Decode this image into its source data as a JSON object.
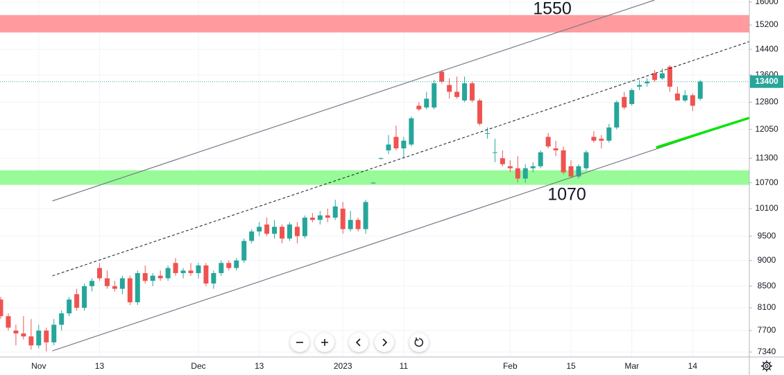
{
  "chart_data": {
    "type": "candlestick",
    "log_scale": true,
    "grid": true,
    "up_color": "#26a69a",
    "down_color": "#ef5350",
    "ylim": [
      7260,
      16070
    ],
    "yticks": [
      16000,
      15200,
      14400,
      13600,
      12800,
      12050,
      11300,
      10700,
      10100,
      9500,
      9000,
      8500,
      8100,
      7700,
      7340
    ],
    "categories": [
      null,
      null,
      null,
      null,
      null,
      "Nov",
      null,
      null,
      null,
      null,
      null,
      null,
      null,
      "13",
      null,
      null,
      null,
      null,
      null,
      null,
      null,
      null,
      null,
      null,
      null,
      null,
      "Dec",
      null,
      null,
      null,
      null,
      null,
      null,
      null,
      "13",
      null,
      null,
      null,
      null,
      null,
      null,
      null,
      null,
      null,
      null,
      "2023",
      null,
      null,
      null,
      null,
      null,
      null,
      null,
      "11",
      null,
      null,
      null,
      null,
      null,
      null,
      null,
      null,
      null,
      null,
      null,
      null,
      null,
      "Feb",
      null,
      null,
      null,
      null,
      null,
      null,
      null,
      "15",
      null,
      null,
      null,
      null,
      null,
      null,
      null,
      "Mar",
      null,
      null,
      null,
      null,
      null,
      null,
      null,
      "14",
      null
    ],
    "open": [
      8250,
      7950,
      7700,
      7650,
      7600,
      7450,
      7700,
      7500,
      7800,
      8000,
      8350,
      8100,
      8500,
      8850,
      8650,
      8500,
      8450,
      8650,
      8200,
      8750,
      8600,
      8700,
      8650,
      8950,
      8750,
      8800,
      8750,
      8900,
      8550,
      8750,
      8950,
      8850,
      9000,
      9400,
      9600,
      9750,
      9550,
      9700,
      9450,
      9700,
      9500,
      9900,
      9850,
      9950,
      9900,
      10100,
      9650,
      9850,
      9650,
      10700,
      11300,
      11500,
      11850,
      11550,
      11650,
      12700,
      12650,
      12650,
      13700,
      13300,
      13100,
      12850,
      13350,
      12850,
      11950,
      11450,
      11300,
      11100,
      11050,
      10800,
      11050,
      11100,
      11850,
      11550,
      11500,
      11100,
      10850,
      11050,
      11850,
      11800,
      11750,
      12100,
      12950,
      12750,
      13250,
      13350,
      13650,
      13500,
      13850,
      13050,
      12850,
      13000,
      12900
    ],
    "high": [
      8300,
      8000,
      7800,
      7950,
      7900,
      7800,
      7750,
      7900,
      8050,
      8300,
      8450,
      8550,
      8650,
      8950,
      8800,
      8600,
      8700,
      8700,
      8800,
      8900,
      8750,
      8800,
      8900,
      9050,
      8850,
      8950,
      8950,
      8950,
      8800,
      9000,
      9000,
      9050,
      9450,
      9650,
      9800,
      9900,
      9850,
      9750,
      9800,
      9800,
      9950,
      10000,
      10050,
      10100,
      10300,
      10250,
      10050,
      9900,
      10300,
      10720,
      11320,
      11900,
      12150,
      11850,
      12400,
      12800,
      13100,
      13450,
      13750,
      13500,
      13550,
      13550,
      13400,
      12900,
      12100,
      11800,
      11500,
      11250,
      11350,
      11150,
      11200,
      11500,
      11950,
      11750,
      11600,
      11250,
      11150,
      11500,
      12000,
      11900,
      12200,
      12850,
      13100,
      13200,
      13450,
      13500,
      13750,
      13800,
      13900,
      13250,
      13150,
      13050,
      13450
    ],
    "low": [
      7900,
      7700,
      7450,
      7550,
      7380,
      7400,
      7350,
      7450,
      7700,
      7950,
      8050,
      8050,
      8400,
      8600,
      8450,
      8400,
      8350,
      8150,
      8150,
      8550,
      8500,
      8600,
      8600,
      8700,
      8650,
      8700,
      8650,
      8500,
      8450,
      8700,
      8800,
      8800,
      8950,
      9350,
      9500,
      9500,
      9450,
      9350,
      9400,
      9350,
      9450,
      9800,
      9750,
      9800,
      9850,
      9550,
      9600,
      9600,
      9550,
      10680,
      11270,
      11400,
      11500,
      11300,
      11600,
      12550,
      12600,
      12600,
      13350,
      12900,
      12900,
      12800,
      12800,
      12150,
      11800,
      11200,
      11100,
      10950,
      10700,
      10700,
      10950,
      11050,
      11550,
      11350,
      10900,
      10800,
      10800,
      11000,
      11700,
      11550,
      11700,
      12050,
      12600,
      12700,
      13150,
      13250,
      13400,
      13450,
      13100,
      12850,
      12800,
      12550,
      12850
    ],
    "close": [
      7950,
      7750,
      7650,
      7600,
      7450,
      7700,
      7500,
      7800,
      8000,
      8250,
      8100,
      8500,
      8600,
      8650,
      8500,
      8450,
      8650,
      8200,
      8750,
      8600,
      8700,
      8650,
      8850,
      8750,
      8800,
      8750,
      8900,
      8550,
      8750,
      8950,
      8850,
      9000,
      9400,
      9600,
      9700,
      9550,
      9700,
      9450,
      9750,
      9500,
      9900,
      9850,
      9950,
      9900,
      10150,
      9650,
      9850,
      9650,
      10250,
      10700,
      11300,
      11650,
      11550,
      11750,
      12350,
      12600,
      12900,
      13350,
      13400,
      13100,
      12950,
      13350,
      12850,
      12200,
      11950,
      11450,
      11150,
      11050,
      10800,
      11050,
      11100,
      11450,
      11600,
      11500,
      10950,
      10850,
      11100,
      11450,
      11750,
      11750,
      12100,
      12800,
      12650,
      13150,
      13300,
      13400,
      13450,
      13650,
      13250,
      12850,
      13000,
      12700,
      13400
    ],
    "last_price": 13400,
    "zones": [
      {
        "from": 14950,
        "to": 15540,
        "color": "#ff9a9e"
      },
      {
        "from": 10650,
        "to": 11000,
        "color": "#98fb98"
      }
    ],
    "lines": [
      {
        "x": [
          6.8,
          86
        ],
        "y": [
          10275,
          16070
        ],
        "color": "#787b86",
        "dash": false,
        "width": 1.2
      },
      {
        "x": [
          6.8,
          98.5
        ],
        "y": [
          8697,
          14653
        ],
        "color": "#131722",
        "dash": true,
        "width": 1
      },
      {
        "x": [
          6.8,
          98.5
        ],
        "y": [
          7360,
          12365
        ],
        "color": "#787b86",
        "dash": false,
        "width": 1.2
      },
      {
        "x": [
          86.2,
          98.5
        ],
        "y": [
          11573,
          12365
        ],
        "color": "#00e600",
        "dash": false,
        "width": 3.5
      }
    ],
    "annotations": [
      "1550",
      "1070"
    ]
  }
}
